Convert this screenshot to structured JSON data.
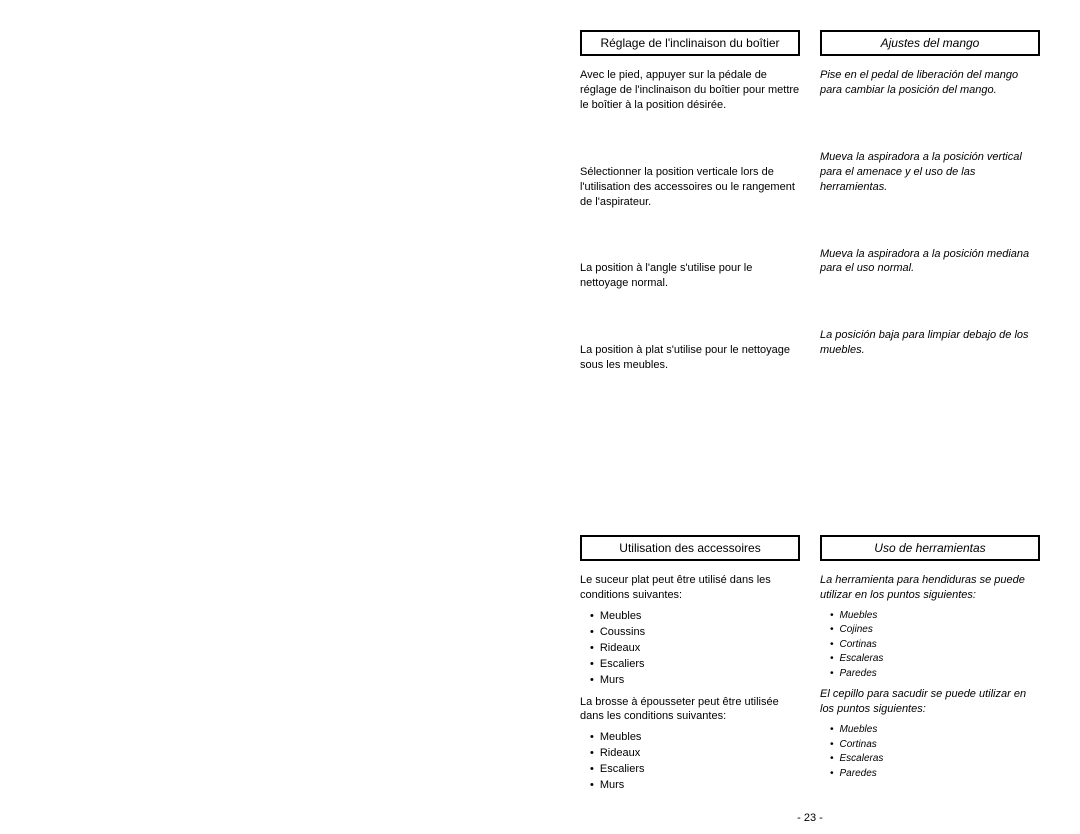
{
  "pageNumber": "- 23 -",
  "french": {
    "header1": "Réglage de l'inclinaison du boîtier",
    "p1": "Avec le pied, appuyer sur la pédale de réglage de l'inclinaison du boîtier pour mettre le boîtier à la position désirée.",
    "p2": "Sélectionner la position verticale lors de l'utilisation des accessoires ou le rangement de l'aspirateur.",
    "p3": "La position à l'angle s'utilise pour le nettoyage normal.",
    "p4": "La position à plat s'utilise pour le nettoyage sous les meubles.",
    "header2": "Utilisation des accessoires",
    "p5": "Le suceur plat peut être utilisé dans les conditions suivantes:",
    "list1": [
      "Meubles",
      "Coussins",
      "Rideaux",
      "Escaliers",
      "Murs"
    ],
    "p6": "La brosse à épousseter peut être utilisée dans les conditions suivantes:",
    "list2": [
      "Meubles",
      "Rideaux",
      "Escaliers",
      "Murs"
    ]
  },
  "spanish": {
    "header1": "Ajustes del mango",
    "p1": "Pise en el pedal de liberación del mango para cambiar la posición del mango.",
    "p2": "Mueva la aspiradora a la posición vertical para el amenace y el uso de las herramientas.",
    "p3": "Mueva la aspiradora a la posición mediana para el uso normal.",
    "p4": "La posición baja para limpiar debajo de los muebles.",
    "header2": "Uso de herramientas",
    "p5": "La herramienta para hendiduras se puede utilizar en los puntos siguientes:",
    "list1": [
      "Muebles",
      "Cojines",
      "Cortinas",
      "Escaleras",
      "Paredes"
    ],
    "p6": "El cepillo para sacudir se puede utilizar en los puntos siguientes:",
    "list2": [
      "Muebles",
      "Cortinas",
      "Escaleras",
      "Paredes"
    ]
  }
}
